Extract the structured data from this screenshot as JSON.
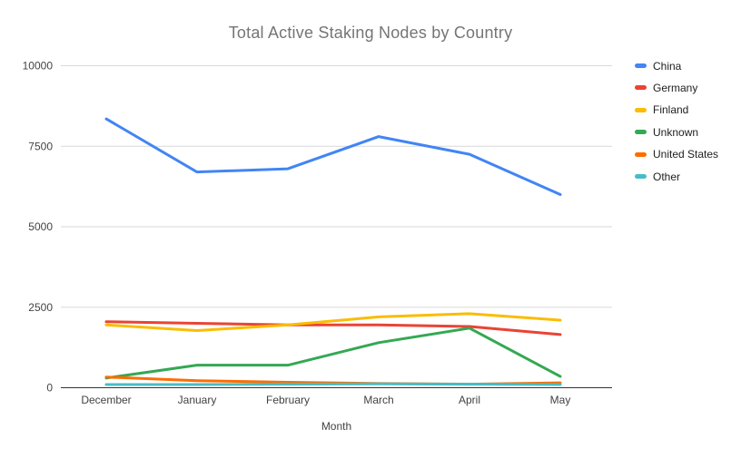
{
  "title": "Total Active Staking Nodes by Country",
  "chart_data": {
    "type": "line",
    "title": "Total Active Staking Nodes by Country",
    "xlabel": "Month",
    "ylabel": "",
    "x": [
      "December",
      "January",
      "February",
      "March",
      "April",
      "May"
    ],
    "yticks": [
      "0",
      "2500",
      "5000",
      "7500",
      "10000"
    ],
    "ylim": [
      0,
      10000
    ],
    "grid": true,
    "legend_position": "right",
    "series": [
      {
        "name": "China",
        "color": "#4285F4",
        "values": [
          8350,
          6700,
          6800,
          7800,
          7250,
          6000
        ]
      },
      {
        "name": "Germany",
        "color": "#EA4335",
        "values": [
          2050,
          2000,
          1950,
          1950,
          1900,
          1650
        ]
      },
      {
        "name": "Finland",
        "color": "#FBBC04",
        "values": [
          1950,
          1775,
          1950,
          2200,
          2300,
          2100
        ]
      },
      {
        "name": "Unknown",
        "color": "#34A853",
        "values": [
          300,
          700,
          700,
          1400,
          1850,
          350
        ]
      },
      {
        "name": "United States",
        "color": "#FF6D01",
        "values": [
          330,
          220,
          170,
          130,
          110,
          150
        ]
      },
      {
        "name": "Other",
        "color": "#46BDC6",
        "values": [
          100,
          100,
          110,
          120,
          110,
          100
        ]
      }
    ],
    "colors": {
      "axis_line": "#333333",
      "gridline": "#d9d9d9",
      "title_text": "#757575",
      "tick_text": "#444444"
    }
  }
}
